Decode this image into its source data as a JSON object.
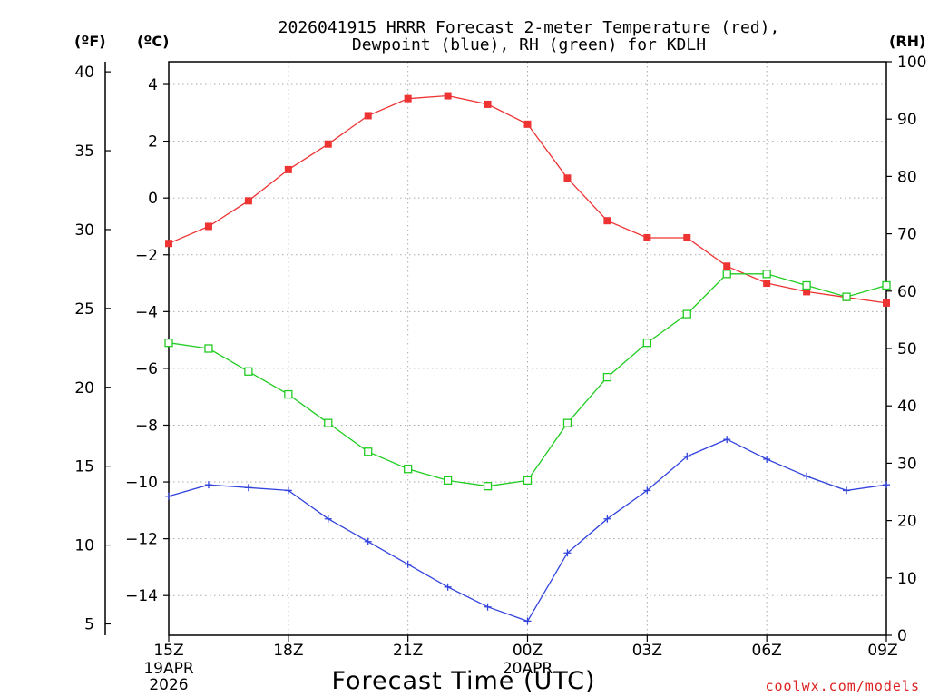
{
  "chart_data": {
    "type": "line",
    "title_line1": "2026041915 HRRR Forecast 2-meter Temperature (red),",
    "title_line2": "Dewpoint (blue), RH (green) for KDLH",
    "xlabel": "Forecast Time (UTC)",
    "credit": "coolwx.com/models",
    "colors": {
      "temperature": "#ee3333",
      "dewpoint": "#3344dd",
      "rh": "#22cc22",
      "grid": "#aaaaaa",
      "credit": "#dd2222"
    },
    "unit_labels": {
      "fahrenheit": "(ºF)",
      "celsius": "(ºC)",
      "rh": "(RH)"
    },
    "axes": {
      "celsius_range": [
        -15.4,
        4.8
      ],
      "rh_range": [
        0,
        100
      ],
      "fahrenheit_ticks": [
        "40",
        "35",
        "30",
        "25",
        "20",
        "15",
        "10",
        "5"
      ],
      "fahrenheit_tick_values": [
        40,
        35,
        30,
        25,
        20,
        15,
        10,
        5
      ],
      "celsius_ticks": [
        "4",
        "2",
        "0",
        "−2",
        "−4",
        "−6",
        "−8",
        "−10",
        "−12",
        "−14"
      ],
      "celsius_tick_values": [
        4,
        2,
        0,
        -2,
        -4,
        -6,
        -8,
        -10,
        -12,
        -14
      ],
      "rh_ticks": [
        "100",
        "90",
        "80",
        "70",
        "60",
        "50",
        "40",
        "30",
        "20",
        "10",
        "0"
      ],
      "rh_tick_values": [
        100,
        90,
        80,
        70,
        60,
        50,
        40,
        30,
        20,
        10,
        0
      ]
    },
    "x_range": [
      0,
      18
    ],
    "x_ticks": [
      {
        "hour": 0,
        "label": "15Z",
        "sub1": "19APR",
        "sub2": "2026"
      },
      {
        "hour": 3,
        "label": "18Z"
      },
      {
        "hour": 6,
        "label": "21Z"
      },
      {
        "hour": 9,
        "label": "00Z",
        "sub1": "20APR"
      },
      {
        "hour": 12,
        "label": "03Z"
      },
      {
        "hour": 15,
        "label": "06Z"
      },
      {
        "hour": 18,
        "label": "09Z"
      }
    ],
    "series": [
      {
        "name": "2-meter Temperature",
        "key": "temperature",
        "units": "C",
        "marker": "square-filled",
        "values": [
          -1.6,
          -1.0,
          -0.1,
          1.0,
          1.9,
          2.9,
          3.5,
          3.6,
          3.3,
          2.6,
          0.7,
          -0.8,
          -1.4,
          -1.4,
          -2.4,
          -3.0,
          -3.3,
          -3.5,
          -3.7
        ]
      },
      {
        "name": "Dewpoint",
        "key": "dewpoint",
        "units": "C",
        "marker": "plus",
        "values": [
          -10.5,
          -10.1,
          -10.2,
          -10.3,
          -11.3,
          -12.1,
          -12.9,
          -13.7,
          -14.4,
          -14.9,
          -12.5,
          -11.3,
          -10.3,
          -9.1,
          -8.5,
          -9.2,
          -9.8,
          -10.3,
          -10.1
        ]
      },
      {
        "name": "RH",
        "key": "rh",
        "units": "%",
        "marker": "square-open",
        "values": [
          51,
          50,
          46,
          42,
          37,
          32,
          29,
          27,
          26,
          27,
          37,
          45,
          51,
          56,
          63,
          63,
          61,
          59,
          61
        ]
      }
    ]
  }
}
